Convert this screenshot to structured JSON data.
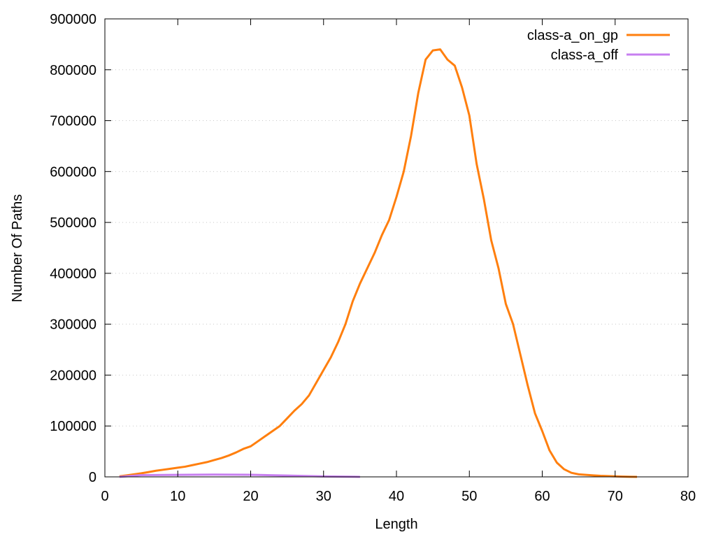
{
  "chart_data": {
    "type": "line",
    "title": "",
    "xlabel": "Length",
    "ylabel": "Number Of Paths",
    "xlim": [
      0,
      80
    ],
    "ylim": [
      0,
      900000
    ],
    "x_ticks": [
      0,
      10,
      20,
      30,
      40,
      50,
      60,
      70,
      80
    ],
    "y_ticks": [
      0,
      100000,
      200000,
      300000,
      400000,
      500000,
      600000,
      700000,
      800000,
      900000
    ],
    "grid": "horizontal dotted",
    "legend_position": "top-right",
    "series": [
      {
        "name": "class-a_on_gp",
        "color": "#ff7f0e",
        "x": [
          2,
          3,
          4,
          5,
          6,
          7,
          8,
          9,
          10,
          11,
          12,
          13,
          14,
          15,
          16,
          17,
          18,
          19,
          20,
          21,
          22,
          23,
          24,
          25,
          26,
          27,
          28,
          29,
          30,
          31,
          32,
          33,
          34,
          35,
          36,
          37,
          38,
          39,
          40,
          41,
          42,
          43,
          44,
          45,
          46,
          47,
          48,
          49,
          50,
          51,
          52,
          53,
          54,
          55,
          56,
          57,
          58,
          59,
          60,
          61,
          62,
          63,
          64,
          65,
          66,
          67,
          68,
          69,
          70,
          71,
          72,
          73
        ],
        "y": [
          1000,
          3000,
          5000,
          7000,
          9500,
          12000,
          14000,
          16000,
          18000,
          20000,
          23000,
          26000,
          29000,
          33000,
          37000,
          42000,
          48000,
          55000,
          60000,
          70000,
          80000,
          90000,
          100000,
          115000,
          130000,
          143000,
          160000,
          185000,
          210000,
          235000,
          265000,
          300000,
          345000,
          380000,
          410000,
          440000,
          475000,
          505000,
          550000,
          600000,
          670000,
          755000,
          820000,
          838000,
          840000,
          820000,
          808000,
          765000,
          710000,
          615000,
          545000,
          465000,
          410000,
          340000,
          300000,
          240000,
          180000,
          125000,
          90000,
          52000,
          28000,
          15000,
          8000,
          5000,
          4000,
          3000,
          2000,
          1500,
          1000,
          500,
          200,
          0
        ]
      },
      {
        "name": "class-a_off",
        "color": "#c77ff0",
        "x": [
          2,
          5,
          10,
          15,
          20,
          25,
          30,
          35
        ],
        "y": [
          0,
          3500,
          4000,
          4500,
          4200,
          2500,
          800,
          0
        ]
      }
    ]
  }
}
